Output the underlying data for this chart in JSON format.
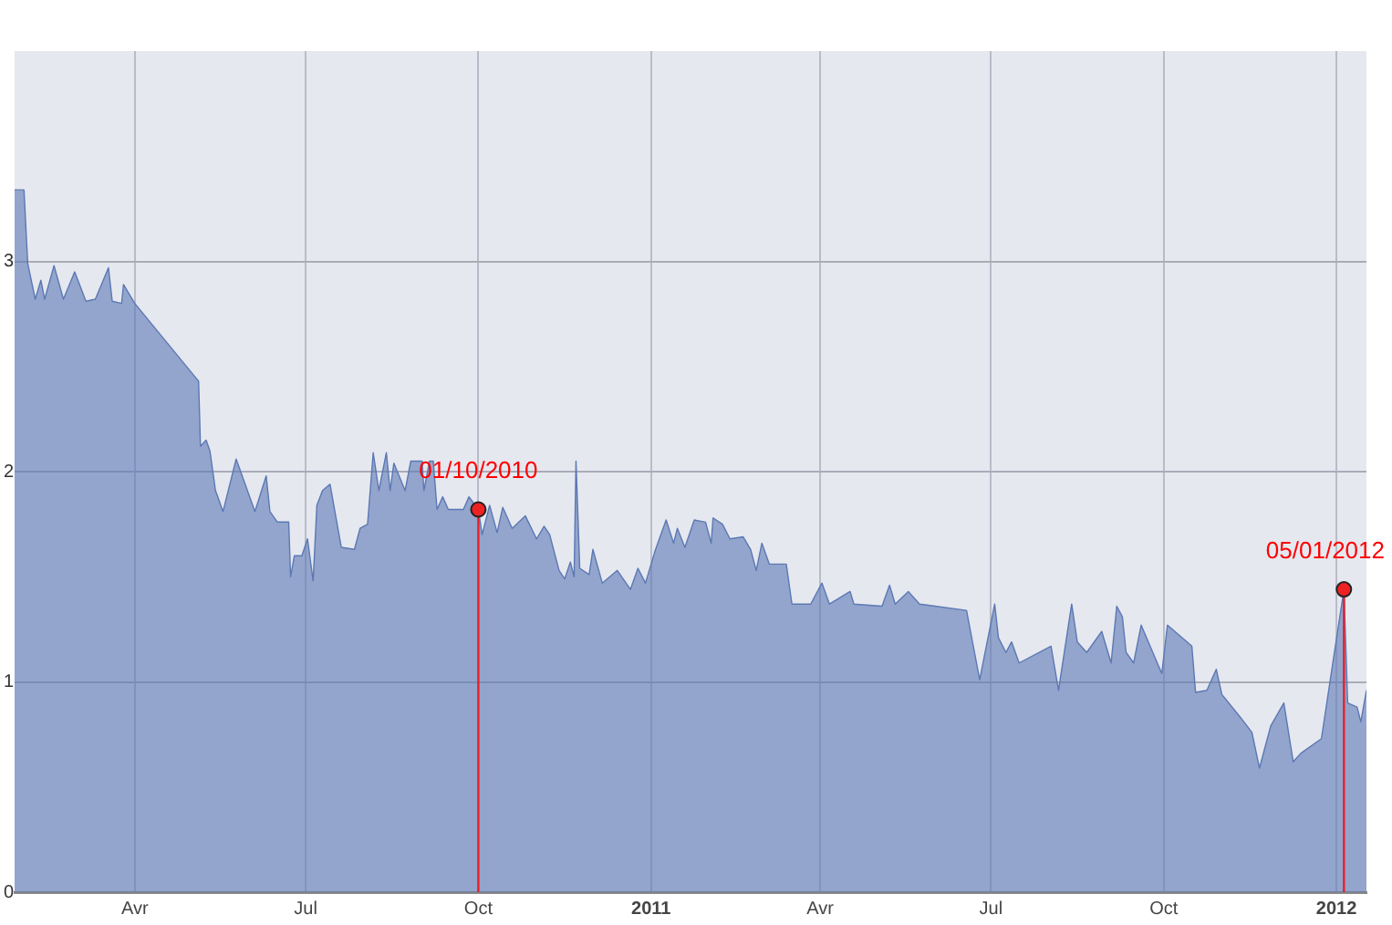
{
  "chart_data": {
    "type": "area",
    "xlim": [
      "2010-01-27",
      "2012-01-17"
    ],
    "ylim": [
      0,
      4
    ],
    "yticks": [
      0,
      1,
      2,
      3
    ],
    "xticks": [
      {
        "value": "2010-04-01",
        "label": "Avr"
      },
      {
        "value": "2010-07-01",
        "label": "Jul"
      },
      {
        "value": "2010-10-01",
        "label": "Oct"
      },
      {
        "value": "2011-01-01",
        "label": "2011"
      },
      {
        "value": "2011-04-01",
        "label": "Avr"
      },
      {
        "value": "2011-07-01",
        "label": "Jul"
      },
      {
        "value": "2011-10-01",
        "label": "Oct"
      },
      {
        "value": "2012-01-01",
        "label": "2012"
      }
    ],
    "grid": true,
    "legend": false,
    "x": [
      "2010-01-27",
      "2010-02-01",
      "2010-02-03",
      "2010-02-07",
      "2010-02-10",
      "2010-02-12",
      "2010-02-17",
      "2010-02-22",
      "2010-02-28",
      "2010-03-06",
      "2010-03-11",
      "2010-03-18",
      "2010-03-20",
      "2010-03-25",
      "2010-03-26",
      "2010-04-01",
      "2010-05-05",
      "2010-05-06",
      "2010-05-09",
      "2010-05-11",
      "2010-05-14",
      "2010-05-18",
      "2010-05-25",
      "2010-06-04",
      "2010-06-10",
      "2010-06-12",
      "2010-06-16",
      "2010-06-22",
      "2010-06-23",
      "2010-06-25",
      "2010-06-29",
      "2010-07-02",
      "2010-07-05",
      "2010-07-07",
      "2010-07-10",
      "2010-07-14",
      "2010-07-20",
      "2010-07-27",
      "2010-07-30",
      "2010-08-03",
      "2010-08-06",
      "2010-08-09",
      "2010-08-13",
      "2010-08-15",
      "2010-08-17",
      "2010-08-23",
      "2010-08-26",
      "2010-09-01",
      "2010-09-02",
      "2010-09-05",
      "2010-09-07",
      "2010-09-09",
      "2010-09-12",
      "2010-09-15",
      "2010-09-23",
      "2010-09-26",
      "2010-10-01",
      "2010-10-03",
      "2010-10-07",
      "2010-10-11",
      "2010-10-14",
      "2010-10-19",
      "2010-10-26",
      "2010-11-01",
      "2010-11-05",
      "2010-11-08",
      "2010-11-13",
      "2010-11-16",
      "2010-11-19",
      "2010-11-21",
      "2010-11-22",
      "2010-11-24",
      "2010-11-29",
      "2010-12-01",
      "2010-12-06",
      "2010-12-14",
      "2010-12-21",
      "2010-12-25",
      "2010-12-29",
      "2011-01-03",
      "2011-01-09",
      "2011-01-13",
      "2011-01-15",
      "2011-01-19",
      "2011-01-24",
      "2011-01-30",
      "2011-02-02",
      "2011-02-03",
      "2011-02-08",
      "2011-02-12",
      "2011-02-19",
      "2011-02-23",
      "2011-02-26",
      "2011-03-01",
      "2011-03-05",
      "2011-03-14",
      "2011-03-17",
      "2011-03-27",
      "2011-04-02",
      "2011-04-06",
      "2011-04-17",
      "2011-04-19",
      "2011-05-04",
      "2011-05-08",
      "2011-05-11",
      "2011-05-18",
      "2011-05-24",
      "2011-06-18",
      "2011-06-25",
      "2011-07-03",
      "2011-07-05",
      "2011-07-09",
      "2011-07-12",
      "2011-07-16",
      "2011-08-02",
      "2011-08-06",
      "2011-08-13",
      "2011-08-16",
      "2011-08-21",
      "2011-08-29",
      "2011-09-03",
      "2011-09-06",
      "2011-09-09",
      "2011-09-11",
      "2011-09-15",
      "2011-09-19",
      "2011-09-30",
      "2011-10-03",
      "2011-10-16",
      "2011-10-18",
      "2011-10-24",
      "2011-10-29",
      "2011-11-01",
      "2011-11-11",
      "2011-11-17",
      "2011-11-21",
      "2011-11-27",
      "2011-12-04",
      "2011-12-09",
      "2011-12-13",
      "2011-12-24",
      "2012-01-05",
      "2012-01-07",
      "2012-01-12",
      "2012-01-14",
      "2012-01-17"
    ],
    "series": [
      {
        "color": "#5b78b4",
        "values": [
          3.34,
          3.34,
          2.99,
          2.82,
          2.91,
          2.82,
          2.98,
          2.82,
          2.95,
          2.81,
          2.82,
          2.97,
          2.81,
          2.8,
          2.89,
          2.8,
          2.43,
          2.12,
          2.15,
          2.1,
          1.91,
          1.81,
          2.06,
          1.81,
          1.98,
          1.81,
          1.76,
          1.76,
          1.5,
          1.6,
          1.6,
          1.68,
          1.48,
          1.84,
          1.91,
          1.94,
          1.64,
          1.63,
          1.73,
          1.75,
          2.09,
          1.91,
          2.09,
          1.91,
          2.04,
          1.91,
          2.05,
          2.05,
          1.91,
          2.05,
          2.05,
          1.82,
          1.88,
          1.82,
          1.82,
          1.88,
          1.82,
          1.7,
          1.84,
          1.71,
          1.83,
          1.73,
          1.79,
          1.68,
          1.74,
          1.7,
          1.53,
          1.49,
          1.57,
          1.5,
          2.05,
          1.54,
          1.51,
          1.63,
          1.47,
          1.53,
          1.44,
          1.54,
          1.47,
          1.62,
          1.77,
          1.66,
          1.73,
          1.64,
          1.77,
          1.76,
          1.66,
          1.78,
          1.75,
          1.68,
          1.69,
          1.63,
          1.53,
          1.66,
          1.56,
          1.56,
          1.37,
          1.37,
          1.47,
          1.37,
          1.43,
          1.37,
          1.36,
          1.46,
          1.37,
          1.43,
          1.37,
          1.34,
          1.01,
          1.37,
          1.21,
          1.14,
          1.19,
          1.09,
          1.17,
          0.96,
          1.37,
          1.19,
          1.14,
          1.24,
          1.09,
          1.36,
          1.31,
          1.14,
          1.09,
          1.27,
          1.04,
          1.27,
          1.17,
          0.95,
          0.96,
          1.06,
          0.94,
          0.83,
          0.76,
          0.59,
          0.79,
          0.9,
          0.62,
          0.66,
          0.73,
          1.44,
          0.9,
          0.88,
          0.81,
          0.96
        ]
      }
    ],
    "ref_lines": [
      {
        "axis": "x",
        "value": "2010-10-01",
        "label": "01/10/2010",
        "color": "#e8202a"
      },
      {
        "axis": "x",
        "value": "2012-01-05",
        "label": "05/01/2012",
        "color": "#e8202a"
      }
    ]
  }
}
